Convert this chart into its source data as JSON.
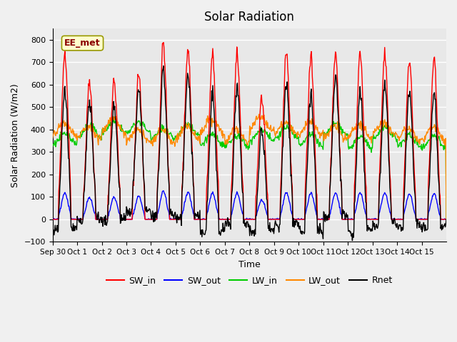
{
  "title": "Solar Radiation",
  "xlabel": "Time",
  "ylabel": "Solar Radiation (W/m2)",
  "ylim": [
    -100,
    850
  ],
  "yticks": [
    -100,
    0,
    100,
    200,
    300,
    400,
    500,
    600,
    700,
    800
  ],
  "num_days": 16,
  "annotation_text": "EE_met",
  "colors": {
    "SW_in": "#FF0000",
    "SW_out": "#0000FF",
    "LW_in": "#00CC00",
    "LW_out": "#FF8800",
    "Rnet": "#000000"
  },
  "fig_bg_color": "#F0F0F0",
  "ax_bg_color": "#E8E8E8",
  "grid_color": "#FFFFFF",
  "tick_labels": [
    "Sep 30",
    "Oct 1",
    "Oct 2",
    "Oct 3",
    "Oct 4",
    "Oct 5",
    "Oct 6",
    "Oct 7",
    "Oct 8",
    "Oct 9",
    "Oct 10",
    "Oct 11",
    "Oct 12",
    "Oct 13",
    "Oct 14",
    "Oct 15"
  ],
  "tick_positions": [
    0,
    1,
    2,
    3,
    4,
    5,
    6,
    7,
    8,
    9,
    10,
    11,
    12,
    13,
    14,
    15
  ],
  "sw_in_peaks": [
    745,
    620,
    620,
    650,
    785,
    760,
    735,
    730,
    540,
    750,
    720,
    740,
    740,
    735,
    715,
    710
  ],
  "seed": 42
}
